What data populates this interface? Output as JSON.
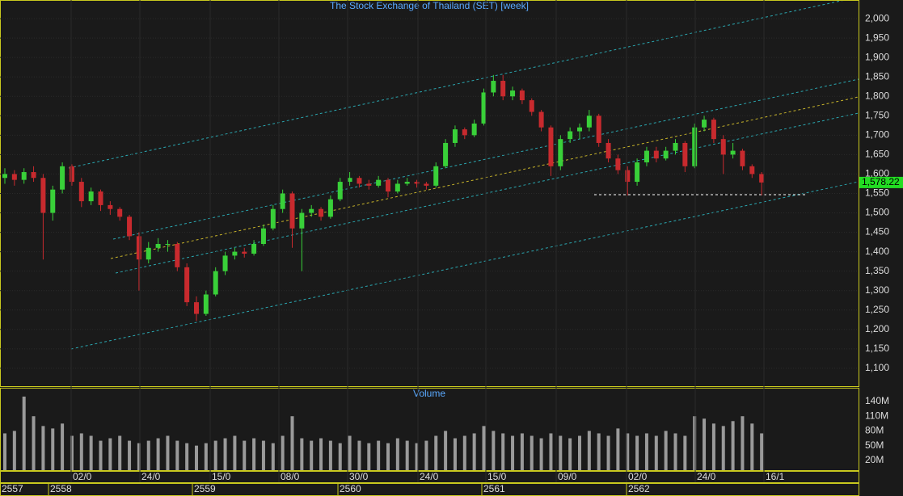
{
  "chart_data": [
    {
      "type": "candlestick",
      "title": "The Stock Exchange of Thailand (SET) [week]",
      "open": [
        1590,
        1600,
        1585,
        1605,
        1590,
        1500,
        1560,
        1620,
        1580,
        1530,
        1555,
        1520,
        1510,
        1490,
        1440,
        1380,
        1410,
        1420,
        1420,
        1360,
        1270,
        1240,
        1290,
        1350,
        1390,
        1400,
        1395,
        1420,
        1460,
        1510,
        1550,
        1460,
        1500,
        1510,
        1490,
        1535,
        1580,
        1590,
        1575,
        1570,
        1585,
        1555,
        1575,
        1580,
        1575,
        1570,
        1620,
        1680,
        1715,
        1700,
        1730,
        1810,
        1840,
        1800,
        1815,
        1790,
        1760,
        1720,
        1620,
        1690,
        1710,
        1720,
        1750,
        1680,
        1640,
        1610,
        1580,
        1630,
        1660,
        1640,
        1660,
        1680,
        1620,
        1720,
        1740,
        1690,
        1650,
        1660,
        1620,
        1600
      ],
      "high": [
        1615,
        1610,
        1615,
        1620,
        1600,
        1570,
        1630,
        1625,
        1590,
        1565,
        1560,
        1530,
        1515,
        1495,
        1450,
        1425,
        1435,
        1430,
        1425,
        1370,
        1285,
        1300,
        1360,
        1400,
        1410,
        1410,
        1430,
        1470,
        1520,
        1560,
        1555,
        1510,
        1520,
        1515,
        1545,
        1590,
        1605,
        1595,
        1585,
        1595,
        1590,
        1585,
        1590,
        1585,
        1580,
        1630,
        1690,
        1725,
        1720,
        1740,
        1820,
        1855,
        1855,
        1825,
        1820,
        1795,
        1765,
        1725,
        1700,
        1720,
        1730,
        1765,
        1755,
        1690,
        1650,
        1620,
        1640,
        1670,
        1670,
        1670,
        1690,
        1685,
        1730,
        1750,
        1745,
        1700,
        1680,
        1665,
        1625,
        1605
      ],
      "low": [
        1575,
        1570,
        1575,
        1580,
        1380,
        1480,
        1550,
        1570,
        1515,
        1520,
        1505,
        1495,
        1480,
        1430,
        1300,
        1370,
        1400,
        1400,
        1350,
        1260,
        1222,
        1235,
        1285,
        1340,
        1380,
        1385,
        1390,
        1415,
        1455,
        1500,
        1410,
        1350,
        1490,
        1480,
        1485,
        1530,
        1570,
        1565,
        1560,
        1565,
        1540,
        1550,
        1570,
        1565,
        1560,
        1565,
        1615,
        1670,
        1690,
        1695,
        1725,
        1800,
        1790,
        1790,
        1780,
        1750,
        1710,
        1595,
        1610,
        1680,
        1690,
        1710,
        1670,
        1630,
        1600,
        1545,
        1570,
        1620,
        1630,
        1635,
        1650,
        1605,
        1615,
        1710,
        1680,
        1600,
        1640,
        1610,
        1590,
        1545
      ],
      "close": [
        1600,
        1585,
        1605,
        1590,
        1500,
        1560,
        1620,
        1580,
        1530,
        1555,
        1520,
        1510,
        1490,
        1440,
        1380,
        1410,
        1420,
        1420,
        1360,
        1270,
        1240,
        1290,
        1350,
        1390,
        1400,
        1395,
        1420,
        1460,
        1510,
        1550,
        1460,
        1500,
        1510,
        1490,
        1535,
        1580,
        1590,
        1575,
        1570,
        1585,
        1555,
        1575,
        1580,
        1575,
        1570,
        1620,
        1680,
        1715,
        1700,
        1730,
        1810,
        1840,
        1800,
        1815,
        1790,
        1760,
        1720,
        1620,
        1690,
        1710,
        1720,
        1750,
        1680,
        1640,
        1610,
        1580,
        1630,
        1660,
        1640,
        1660,
        1680,
        1620,
        1720,
        1740,
        1690,
        1650,
        1660,
        1620,
        1600,
        1578.22
      ],
      "last_price_label": "1,578.22",
      "up_color": "#39d039",
      "down_color": "#c82a2e",
      "grid": true,
      "ylim": [
        1054,
        2048
      ],
      "yticks": [
        {
          "value": 1100,
          "label": "1,100"
        },
        {
          "value": 1150,
          "label": "1,150"
        },
        {
          "value": 1200,
          "label": "1,200"
        },
        {
          "value": 1250,
          "label": "1,250"
        },
        {
          "value": 1300,
          "label": "1,300"
        },
        {
          "value": 1350,
          "label": "1,350"
        },
        {
          "value": 1400,
          "label": "1,400"
        },
        {
          "value": 1450,
          "label": "1,450"
        },
        {
          "value": 1500,
          "label": "1,500"
        },
        {
          "value": 1550,
          "label": "1,550"
        },
        {
          "value": 1600,
          "label": "1,600"
        },
        {
          "value": 1650,
          "label": "1,650"
        },
        {
          "value": 1700,
          "label": "1,700"
        },
        {
          "value": 1750,
          "label": "1,750"
        },
        {
          "value": 1800,
          "label": "1,800"
        },
        {
          "value": 1850,
          "label": "1,850"
        },
        {
          "value": 1900,
          "label": "1,900"
        },
        {
          "value": 1950,
          "label": "1,950"
        },
        {
          "value": 2000,
          "label": "2,000"
        }
      ]
    },
    {
      "type": "bar",
      "title": "Volume",
      "color": "#9a9a9a",
      "values": [
        75,
        80,
        150,
        110,
        90,
        85,
        95,
        70,
        75,
        70,
        60,
        65,
        70,
        60,
        55,
        60,
        65,
        70,
        60,
        55,
        50,
        55,
        60,
        65,
        70,
        60,
        65,
        60,
        55,
        70,
        110,
        65,
        60,
        65,
        60,
        55,
        70,
        60,
        55,
        60,
        55,
        65,
        60,
        55,
        60,
        70,
        80,
        65,
        70,
        75,
        90,
        80,
        75,
        70,
        75,
        70,
        65,
        75,
        70,
        65,
        70,
        80,
        75,
        70,
        85,
        75,
        70,
        75,
        70,
        80,
        75,
        70,
        110,
        105,
        95,
        90,
        100,
        110,
        95,
        75
      ],
      "ylim": [
        0,
        168
      ],
      "yticks": [
        {
          "value": 20,
          "label": "20M"
        },
        {
          "value": 50,
          "label": "50M"
        },
        {
          "value": 80,
          "label": "80M"
        },
        {
          "value": 110,
          "label": "110M"
        },
        {
          "value": 140,
          "label": "140M"
        }
      ]
    }
  ],
  "x_axis": {
    "dates": [
      "02/0",
      "24/0",
      "15/0",
      "08/0",
      "30/0",
      "24/0",
      "15/0",
      "09/0",
      "02/0",
      "24/0",
      "16/1"
    ],
    "years": [
      "2557",
      "2558",
      "2559",
      "2560",
      "2561",
      "2562"
    ]
  }
}
